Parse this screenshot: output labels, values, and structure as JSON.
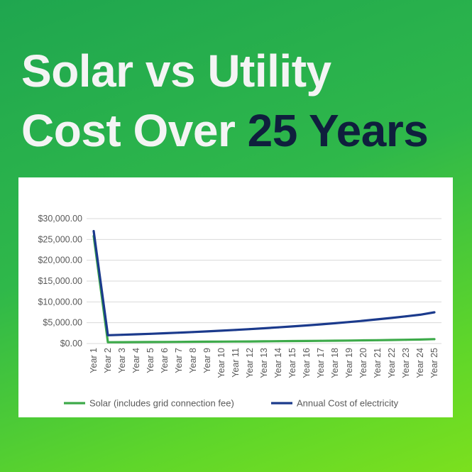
{
  "headline": {
    "line1": "Solar vs Utility",
    "line2_prefix": "Cost Over ",
    "line2_accent": "25 Years"
  },
  "colors": {
    "headline_text": "#f4f4f4",
    "accent_text": "#0f1f3d",
    "solar_series": "#3daa4a",
    "utility_series": "#1b3a8c",
    "grid": "#d9d9d9",
    "axis_text": "#595959"
  },
  "chart_data": {
    "type": "line",
    "title": "",
    "xlabel": "",
    "ylabel": "",
    "ylim": [
      0,
      30000
    ],
    "yticks": [
      0,
      5000,
      10000,
      15000,
      20000,
      25000,
      30000
    ],
    "ytick_labels": [
      "$0.00",
      "$5,000.00",
      "$10,000.00",
      "$15,000.00",
      "$20,000.00",
      "$25,000.00",
      "$30,000.00"
    ],
    "categories": [
      "Year 1",
      "Year 2",
      "Year 3",
      "Year 4",
      "Year 5",
      "Year 6",
      "Year 7",
      "Year 8",
      "Year 9",
      "Year 10",
      "Year 11",
      "Year 12",
      "Year 13",
      "Year 14",
      "Year 15",
      "Year 16",
      "Year 17",
      "Year 18",
      "Year 19",
      "Year 20",
      "Year 21",
      "Year 22",
      "Year 23",
      "Year 24",
      "Year 25"
    ],
    "grid": true,
    "legend_position": "bottom",
    "series": [
      {
        "name": "Solar (includes grid connection fee)",
        "color": "#3daa4a",
        "values": [
          25800,
          300,
          320,
          340,
          360,
          380,
          400,
          420,
          440,
          460,
          480,
          500,
          530,
          560,
          590,
          620,
          650,
          680,
          720,
          760,
          800,
          850,
          900,
          950,
          1050
        ]
      },
      {
        "name": "Annual Cost of electricity",
        "color": "#1b3a8c",
        "values": [
          27000,
          2000,
          2100,
          2220,
          2340,
          2470,
          2610,
          2760,
          2920,
          3090,
          3270,
          3460,
          3660,
          3880,
          4110,
          4350,
          4610,
          4880,
          5170,
          5480,
          5810,
          6160,
          6530,
          6920,
          7500
        ]
      }
    ]
  }
}
